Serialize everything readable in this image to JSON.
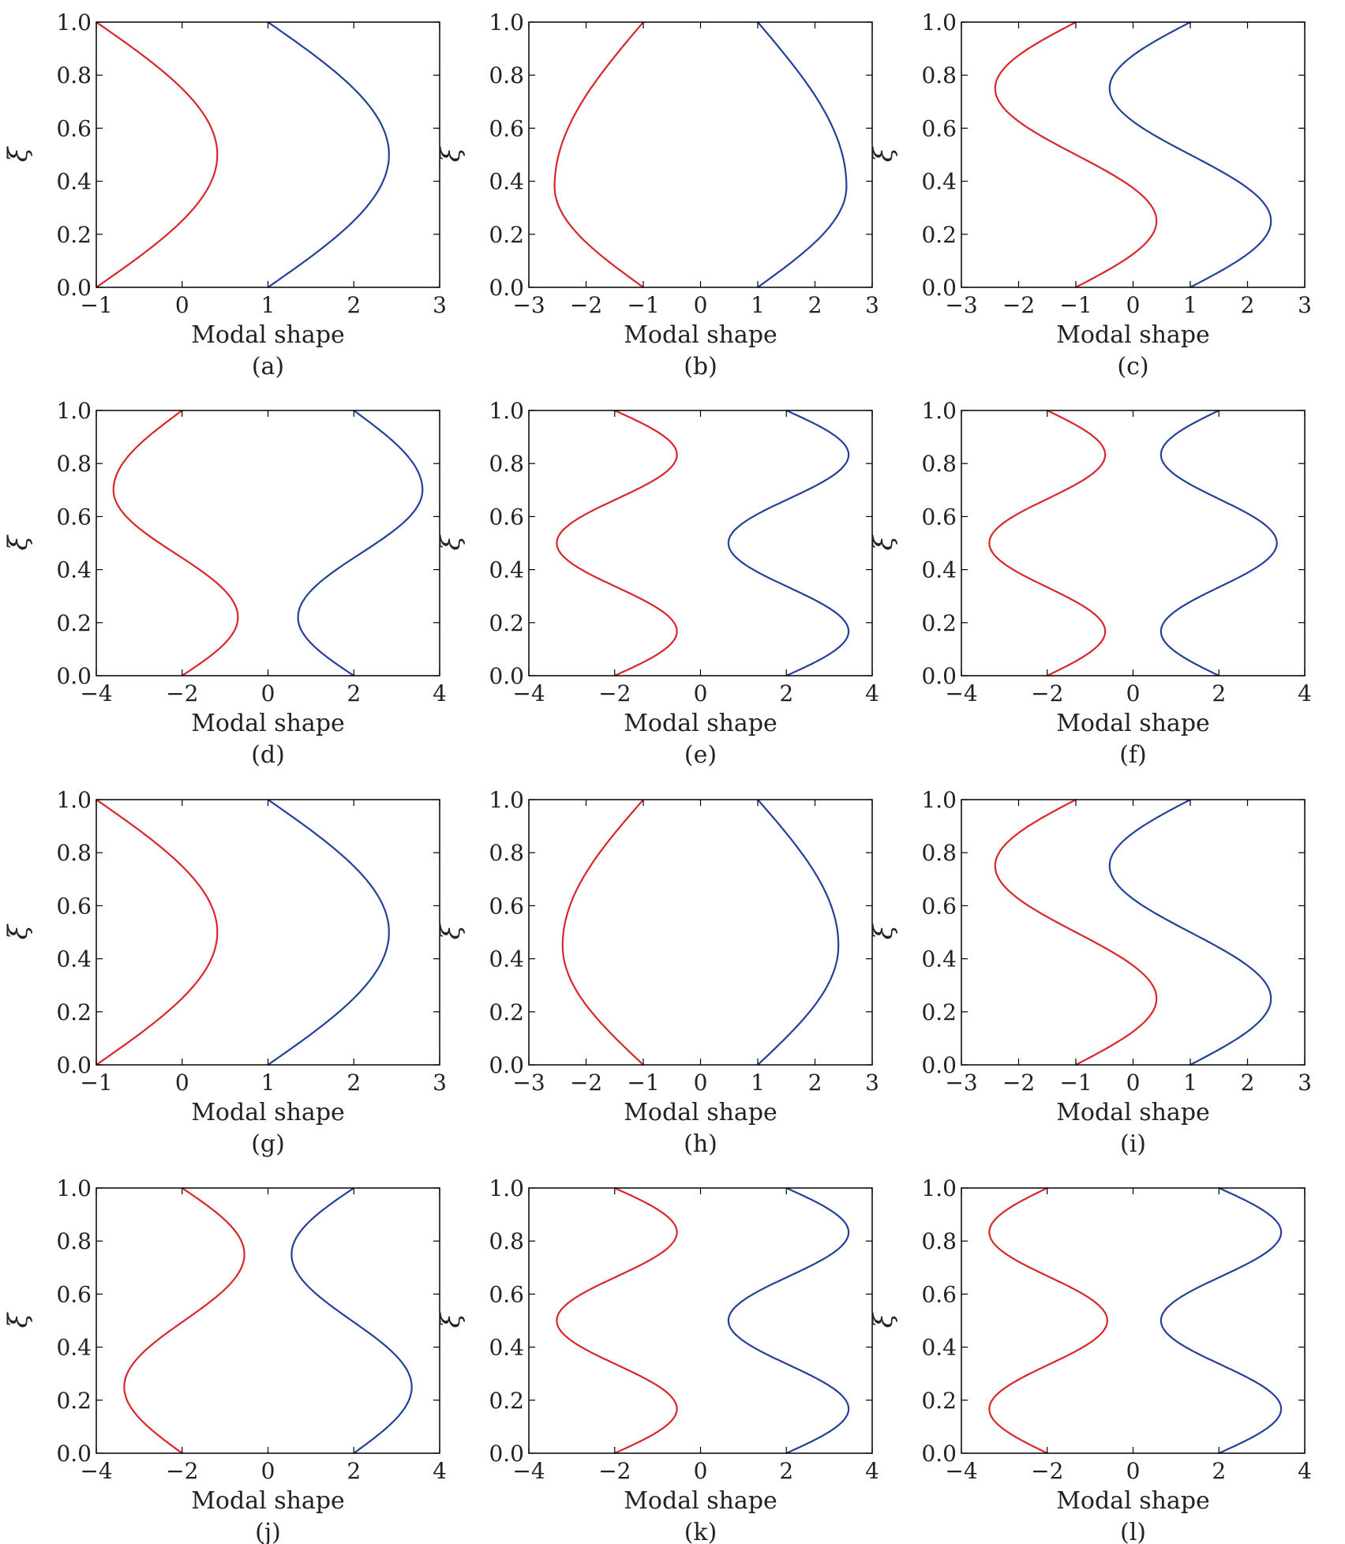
{
  "colors": {
    "red": "#d9262b",
    "blue": "#24409a"
  },
  "chart_data": [
    {
      "type": "line",
      "panel": "(a)",
      "xlabel": "Modal shape",
      "ylabel": "ξ",
      "xlim": [
        -1,
        3
      ],
      "ylim": [
        0,
        1
      ],
      "xticks": [
        -1,
        0,
        1,
        2,
        3
      ],
      "yticks": [
        0.0,
        0.2,
        0.4,
        0.6,
        0.8,
        1.0
      ],
      "grid": false,
      "series": [
        {
          "color": "red",
          "x": [
            -1.0,
            0.41,
            -1.0
          ],
          "y": [
            0.0,
            0.5,
            1.0
          ],
          "desc": "half-sine bulge"
        },
        {
          "color": "blue",
          "x": [
            1.0,
            2.41,
            1.0
          ],
          "y": [
            0.0,
            0.5,
            1.0
          ]
        }
      ]
    },
    {
      "type": "line",
      "panel": "(b)",
      "xlabel": "Modal shape",
      "ylabel": "ξ",
      "xlim": [
        -3,
        3
      ],
      "ylim": [
        0,
        1
      ],
      "xticks": [
        -3,
        -2,
        -1,
        0,
        1,
        2,
        3
      ],
      "yticks": [
        0.0,
        0.2,
        0.4,
        0.6,
        0.8,
        1.0
      ],
      "grid": false,
      "series": [
        {
          "color": "red",
          "x": [
            -1.0,
            -2.55,
            -1.0
          ],
          "y": [
            0.0,
            0.38,
            1.0
          ]
        },
        {
          "color": "blue",
          "x": [
            1.0,
            2.55,
            1.0
          ],
          "y": [
            0.0,
            0.38,
            1.0
          ]
        }
      ]
    },
    {
      "type": "line",
      "panel": "(c)",
      "xlabel": "Modal shape",
      "ylabel": "ξ",
      "xlim": [
        -3,
        3
      ],
      "ylim": [
        0,
        1
      ],
      "xticks": [
        -3,
        -2,
        -1,
        0,
        1,
        2,
        3
      ],
      "yticks": [
        0.0,
        0.2,
        0.4,
        0.6,
        0.8,
        1.0
      ],
      "grid": false,
      "series": [
        {
          "color": "red",
          "x": [
            -1.0,
            0.41,
            -2.41,
            -1.0
          ],
          "y": [
            0.0,
            0.25,
            0.75,
            1.0
          ]
        },
        {
          "color": "blue",
          "x": [
            1.0,
            2.41,
            -0.41,
            1.0
          ],
          "y": [
            0.0,
            0.25,
            0.75,
            1.0
          ]
        }
      ]
    },
    {
      "type": "line",
      "panel": "(d)",
      "xlabel": "Modal shape",
      "ylabel": "ξ",
      "xlim": [
        -4,
        4
      ],
      "ylim": [
        0,
        1
      ],
      "xticks": [
        -4,
        -2,
        0,
        2,
        4
      ],
      "yticks": [
        0.0,
        0.2,
        0.4,
        0.6,
        0.8,
        1.0
      ],
      "grid": false,
      "series": [
        {
          "color": "red",
          "x": [
            -2.0,
            -0.7,
            -3.6,
            -2.0
          ],
          "y": [
            0.0,
            0.22,
            0.7,
            1.0
          ]
        },
        {
          "color": "blue",
          "x": [
            2.0,
            0.7,
            3.6,
            2.0
          ],
          "y": [
            0.0,
            0.22,
            0.7,
            1.0
          ]
        }
      ]
    },
    {
      "type": "line",
      "panel": "(e)",
      "xlabel": "Modal shape",
      "ylabel": "ξ",
      "xlim": [
        -4,
        4
      ],
      "ylim": [
        0,
        1
      ],
      "xticks": [
        -4,
        -2,
        0,
        2,
        4
      ],
      "yticks": [
        0.0,
        0.2,
        0.4,
        0.6,
        0.8,
        1.0
      ],
      "grid": false,
      "series": [
        {
          "color": "red",
          "x": [
            -2.0,
            -0.55,
            -3.35,
            -0.55,
            -2.0
          ],
          "y": [
            0.0,
            0.167,
            0.5,
            0.833,
            1.0
          ]
        },
        {
          "color": "blue",
          "x": [
            2.0,
            3.45,
            0.65,
            3.45,
            2.0
          ],
          "y": [
            0.0,
            0.167,
            0.5,
            0.833,
            1.0
          ]
        }
      ]
    },
    {
      "type": "line",
      "panel": "(f)",
      "xlabel": "Modal shape",
      "ylabel": "ξ",
      "xlim": [
        -4,
        4
      ],
      "ylim": [
        0,
        1
      ],
      "xticks": [
        -4,
        -2,
        0,
        2,
        4
      ],
      "yticks": [
        0.0,
        0.2,
        0.4,
        0.6,
        0.8,
        1.0
      ],
      "grid": false,
      "series": [
        {
          "color": "red",
          "x": [
            -2.0,
            -0.65,
            -3.35,
            -0.65,
            -2.0
          ],
          "y": [
            0.0,
            0.167,
            0.5,
            0.833,
            1.0
          ]
        },
        {
          "color": "blue",
          "x": [
            2.0,
            0.65,
            3.35,
            0.65,
            2.0
          ],
          "y": [
            0.0,
            0.167,
            0.5,
            0.833,
            1.0
          ]
        }
      ]
    },
    {
      "type": "line",
      "panel": "(g)",
      "xlabel": "Modal shape",
      "ylabel": "ξ",
      "xlim": [
        -1,
        3
      ],
      "ylim": [
        0,
        1
      ],
      "xticks": [
        -1,
        0,
        1,
        2,
        3
      ],
      "yticks": [
        0.0,
        0.2,
        0.4,
        0.6,
        0.8,
        1.0
      ],
      "grid": false,
      "series": [
        {
          "color": "red",
          "x": [
            -1.0,
            0.41,
            -1.0
          ],
          "y": [
            0.0,
            0.5,
            1.0
          ]
        },
        {
          "color": "blue",
          "x": [
            1.0,
            2.41,
            1.0
          ],
          "y": [
            0.0,
            0.5,
            1.0
          ]
        }
      ]
    },
    {
      "type": "line",
      "panel": "(h)",
      "xlabel": "Modal shape",
      "ylabel": "ξ",
      "xlim": [
        -3,
        3
      ],
      "ylim": [
        0,
        1
      ],
      "xticks": [
        -3,
        -2,
        -1,
        0,
        1,
        2,
        3
      ],
      "yticks": [
        0.0,
        0.2,
        0.4,
        0.6,
        0.8,
        1.0
      ],
      "grid": false,
      "series": [
        {
          "color": "red",
          "x": [
            -1.0,
            -2.41,
            -1.0
          ],
          "y": [
            0.0,
            0.45,
            1.0
          ]
        },
        {
          "color": "blue",
          "x": [
            1.0,
            2.41,
            1.0
          ],
          "y": [
            0.0,
            0.45,
            1.0
          ]
        }
      ]
    },
    {
      "type": "line",
      "panel": "(i)",
      "xlabel": "Modal shape",
      "ylabel": "ξ",
      "xlim": [
        -3,
        3
      ],
      "ylim": [
        0,
        1
      ],
      "xticks": [
        -3,
        -2,
        -1,
        0,
        1,
        2,
        3
      ],
      "yticks": [
        0.0,
        0.2,
        0.4,
        0.6,
        0.8,
        1.0
      ],
      "grid": false,
      "series": [
        {
          "color": "red",
          "x": [
            -1.0,
            0.41,
            -2.41,
            -1.0
          ],
          "y": [
            0.0,
            0.25,
            0.75,
            1.0
          ]
        },
        {
          "color": "blue",
          "x": [
            1.0,
            2.41,
            -0.41,
            1.0
          ],
          "y": [
            0.0,
            0.25,
            0.75,
            1.0
          ]
        }
      ]
    },
    {
      "type": "line",
      "panel": "(j)",
      "xlabel": "Modal shape",
      "ylabel": "ξ",
      "xlim": [
        -4,
        4
      ],
      "ylim": [
        0,
        1
      ],
      "xticks": [
        -4,
        -2,
        0,
        2,
        4
      ],
      "yticks": [
        0.0,
        0.2,
        0.4,
        0.6,
        0.8,
        1.0
      ],
      "grid": false,
      "series": [
        {
          "color": "red",
          "x": [
            -2.0,
            -3.35,
            -0.55,
            -2.0
          ],
          "y": [
            0.0,
            0.25,
            0.75,
            1.0
          ]
        },
        {
          "color": "blue",
          "x": [
            2.0,
            3.35,
            0.55,
            2.0
          ],
          "y": [
            0.0,
            0.25,
            0.75,
            1.0
          ]
        }
      ]
    },
    {
      "type": "line",
      "panel": "(k)",
      "xlabel": "Modal shape",
      "ylabel": "ξ",
      "xlim": [
        -4,
        4
      ],
      "ylim": [
        0,
        1
      ],
      "xticks": [
        -4,
        -2,
        0,
        2,
        4
      ],
      "yticks": [
        0.0,
        0.2,
        0.4,
        0.6,
        0.8,
        1.0
      ],
      "grid": false,
      "series": [
        {
          "color": "red",
          "x": [
            -2.0,
            -0.55,
            -3.35,
            -0.55,
            -2.0
          ],
          "y": [
            0.0,
            0.167,
            0.5,
            0.833,
            1.0
          ]
        },
        {
          "color": "blue",
          "x": [
            2.0,
            3.45,
            0.65,
            3.45,
            2.0
          ],
          "y": [
            0.0,
            0.167,
            0.5,
            0.833,
            1.0
          ]
        }
      ]
    },
    {
      "type": "line",
      "panel": "(l)",
      "xlabel": "Modal shape",
      "ylabel": "ξ",
      "xlim": [
        -4,
        4
      ],
      "ylim": [
        0,
        1
      ],
      "xticks": [
        -4,
        -2,
        0,
        2,
        4
      ],
      "yticks": [
        0.0,
        0.2,
        0.4,
        0.6,
        0.8,
        1.0
      ],
      "grid": false,
      "series": [
        {
          "color": "red",
          "x": [
            -2.0,
            -3.35,
            -0.6,
            -3.35,
            -2.0
          ],
          "y": [
            0.0,
            0.167,
            0.5,
            0.833,
            1.0
          ]
        },
        {
          "color": "blue",
          "x": [
            2.0,
            3.45,
            0.65,
            3.45,
            2.0
          ],
          "y": [
            0.0,
            0.167,
            0.5,
            0.833,
            1.0
          ]
        }
      ]
    }
  ]
}
